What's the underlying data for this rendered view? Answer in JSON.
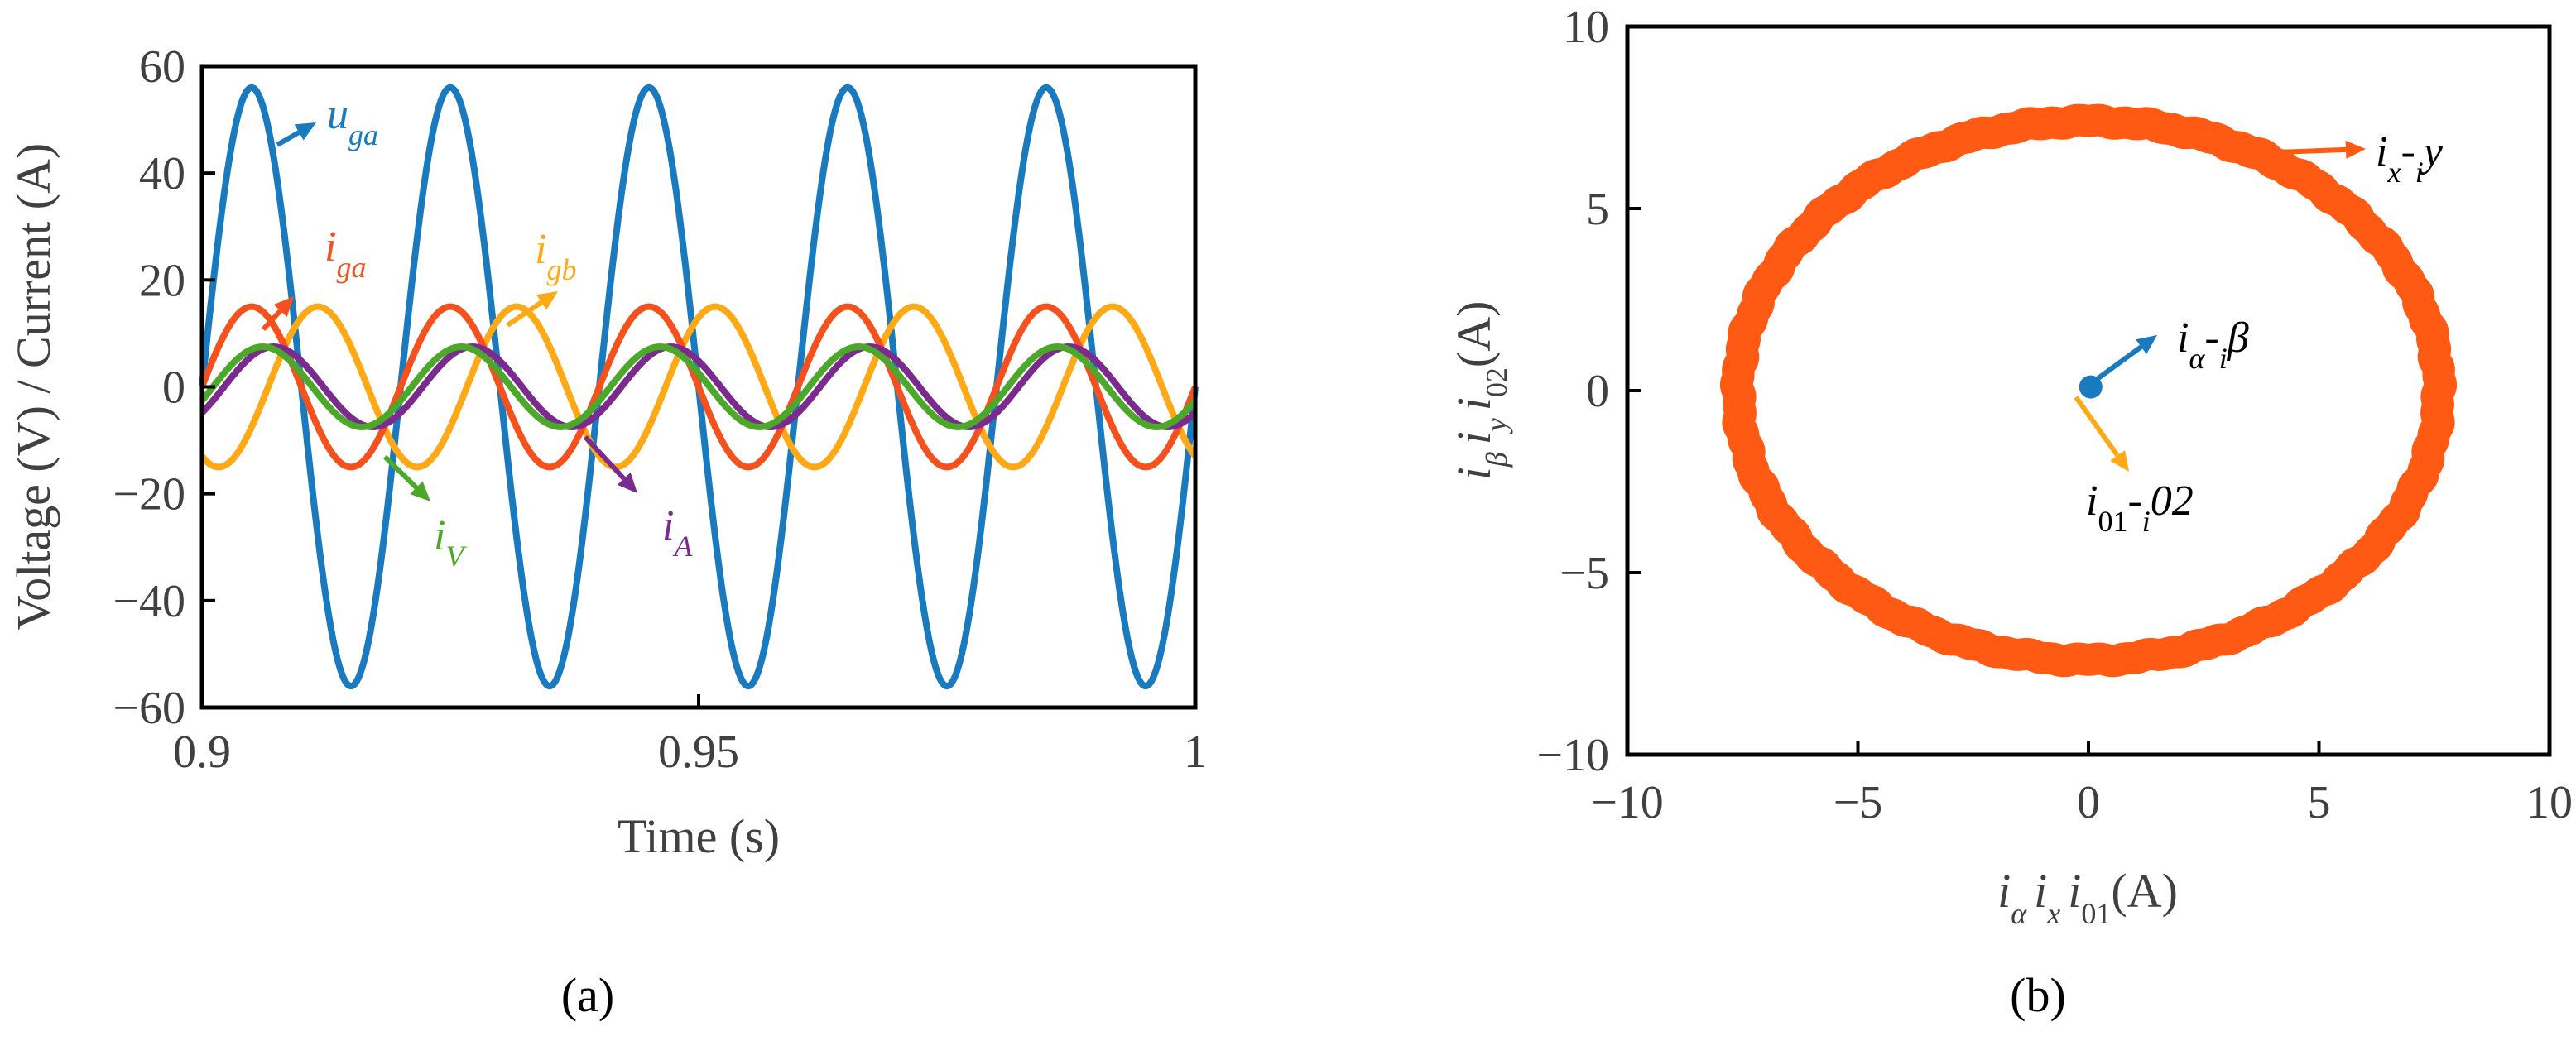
{
  "colors": {
    "u_ga": "#1a7abf",
    "i_ga": "#f4511e",
    "i_gb": "#ffa916",
    "i_V": "#4ba82b",
    "i_A": "#7b2a8e",
    "trajectory_xy": "#ff5a14",
    "trajectory_ab": "#1a7abf",
    "trajectory_012": "#ffa916"
  },
  "chart_data": [
    {
      "type": "line",
      "caption": "(a)",
      "xlabel": "Time (s)",
      "ylabel": "Voltage (V) / Current (A)",
      "xlim": [
        0.9,
        1.0
      ],
      "ylim": [
        -60,
        60
      ],
      "xticks": [
        "0.9",
        "0.95",
        "1"
      ],
      "xtick_values": [
        0.9,
        0.95,
        1.0
      ],
      "yticks": [
        "60",
        "40",
        "20",
        "0",
        "−20",
        "−40",
        "−60"
      ],
      "ytick_values": [
        60,
        40,
        20,
        0,
        -20,
        -40,
        -60
      ],
      "series_model": "y = amplitude * sin(2*pi*50*(t - 0.9) + phase_deg)",
      "series": [
        {
          "name": "u_ga",
          "label_main": "u",
          "label_sub": "ga",
          "amplitude": 56,
          "phase_deg": 0,
          "frequency_hz": 50
        },
        {
          "name": "i_ga",
          "label_main": "i",
          "label_sub": "ga",
          "amplitude": 15,
          "phase_deg": 0,
          "frequency_hz": 50
        },
        {
          "name": "i_gb",
          "label_main": "i",
          "label_sub": "gb",
          "amplitude": 15,
          "phase_deg": -120,
          "frequency_hz": 50
        },
        {
          "name": "i_V",
          "label_main": "i",
          "label_sub": "V",
          "amplitude": 7.5,
          "phase_deg": -20,
          "frequency_hz": 50
        },
        {
          "name": "i_A",
          "label_main": "i",
          "label_sub": "A",
          "amplitude": 7.5,
          "phase_deg": -40,
          "frequency_hz": 50
        }
      ],
      "grid": false
    },
    {
      "type": "scatter",
      "caption": "(b)",
      "xlabel_parts": [
        "i",
        "α",
        "i",
        "x",
        "i",
        "01",
        "(A)"
      ],
      "ylabel_parts": [
        "i",
        "β",
        "i",
        "y",
        "i",
        "02",
        "(A)"
      ],
      "xlim": [
        -10,
        10
      ],
      "ylim": [
        -10,
        10
      ],
      "xticks": [
        "−10",
        "−5",
        "0",
        "5",
        "10"
      ],
      "xtick_values": [
        -10,
        -5,
        0,
        5,
        10
      ],
      "yticks": [
        "10",
        "5",
        "0",
        "−5",
        "−10"
      ],
      "ytick_values": [
        10,
        5,
        0,
        -5,
        -10
      ],
      "series": [
        {
          "name": "i_x-i_y",
          "label_parts": [
            "i",
            "x",
            "-",
            "i",
            "y"
          ],
          "shape": "ring",
          "center": [
            0,
            0
          ],
          "radius_x": 7.6,
          "radius_y": 7.4,
          "band_width": 0.35
        },
        {
          "name": "i_alpha-i_beta",
          "label_parts": [
            "i",
            "α",
            "-",
            "i",
            "β"
          ],
          "shape": "dot",
          "center": [
            0.05,
            0.1
          ],
          "radius": 0.12
        },
        {
          "name": "i_01-i_02",
          "label_parts": [
            "i",
            "01",
            "-",
            "i",
            "02"
          ],
          "shape": "point",
          "center": [
            0,
            0
          ]
        }
      ],
      "grid": false
    }
  ]
}
